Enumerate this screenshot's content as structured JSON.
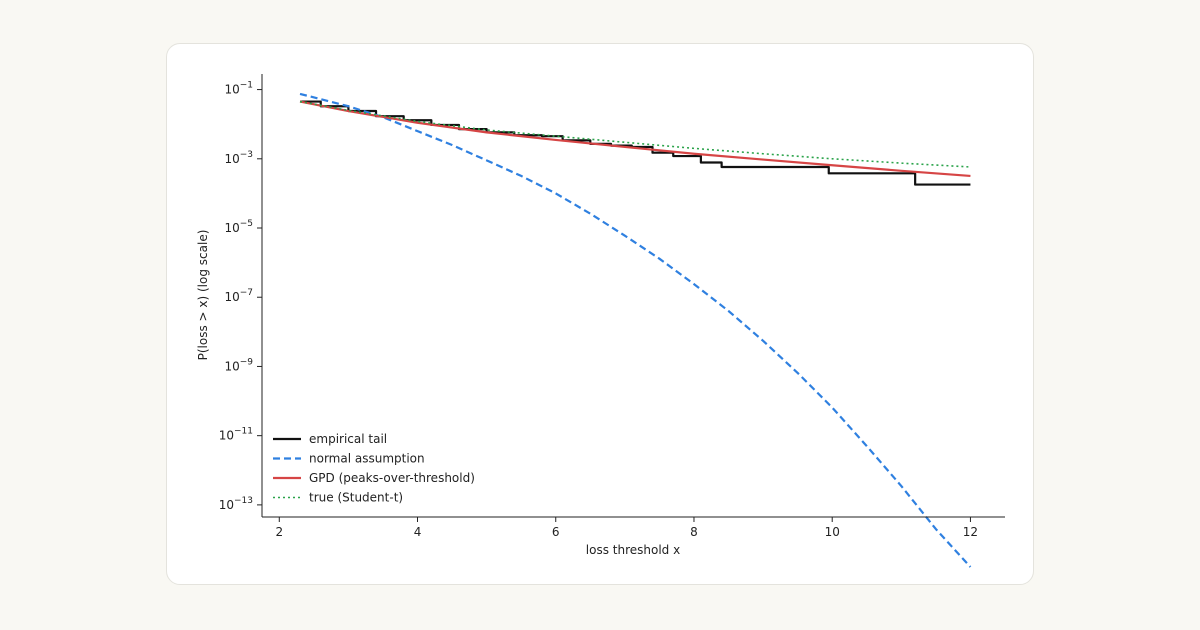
{
  "chart_data": {
    "type": "line",
    "title": "",
    "xlabel": "loss threshold x",
    "ylabel": "P(loss > x)  (log scale)",
    "xlim": [
      1.75,
      12.5
    ],
    "ylim_log10": [
      -13.35,
      -0.55
    ],
    "yscale": "log",
    "grid": false,
    "legend_placement": "lower-left",
    "x_ticks": [
      2,
      4,
      6,
      8,
      10,
      12
    ],
    "y_ticks": [
      {
        "exp": -1,
        "base": "10",
        "sup": "−1"
      },
      {
        "exp": -3,
        "base": "10",
        "sup": "−3"
      },
      {
        "exp": -5,
        "base": "10",
        "sup": "−5"
      },
      {
        "exp": -7,
        "base": "10",
        "sup": "−7"
      },
      {
        "exp": -9,
        "base": "10",
        "sup": "−9"
      },
      {
        "exp": -11,
        "base": "10",
        "sup": "−11"
      },
      {
        "exp": -13,
        "base": "10",
        "sup": "−13"
      }
    ],
    "series": [
      {
        "name": "empirical tail",
        "color": "#111111",
        "style": "solid",
        "step": true,
        "points": [
          [
            2.3,
            0.045
          ],
          [
            2.6,
            0.033
          ],
          [
            3.0,
            0.024
          ],
          [
            3.4,
            0.017
          ],
          [
            3.8,
            0.013
          ],
          [
            4.2,
            0.0095
          ],
          [
            4.6,
            0.0072
          ],
          [
            5.0,
            0.0058
          ],
          [
            5.4,
            0.0048
          ],
          [
            5.8,
            0.0045
          ],
          [
            6.1,
            0.0034
          ],
          [
            6.5,
            0.0027
          ],
          [
            6.8,
            0.0024
          ],
          [
            7.1,
            0.0022
          ],
          [
            7.4,
            0.0015
          ],
          [
            7.7,
            0.0012
          ],
          [
            8.1,
            0.00078
          ],
          [
            8.4,
            0.00058
          ],
          [
            9.3,
            0.00058
          ],
          [
            9.95,
            0.00038
          ],
          [
            11.2,
            0.00018
          ],
          [
            12.0,
            0.00018
          ]
        ]
      },
      {
        "name": "normal assumption",
        "color": "#2f80e0",
        "style": "dashed",
        "points": [
          [
            2.3,
            0.075
          ],
          [
            3.0,
            0.033
          ],
          [
            3.5,
            0.016
          ],
          [
            4.0,
            0.0063
          ],
          [
            4.5,
            0.0025
          ],
          [
            5.0,
            0.0009
          ],
          [
            5.5,
            0.00032
          ],
          [
            6.0,
            0.0001
          ],
          [
            6.5,
            2.6e-05
          ],
          [
            7.0,
            6e-06
          ],
          [
            7.5,
            1.3e-06
          ],
          [
            8.0,
            2.4e-07
          ],
          [
            8.5,
            4e-08
          ],
          [
            9.0,
            5.5e-09
          ],
          [
            9.5,
            6.5e-10
          ],
          [
            10.0,
            6.5e-11
          ],
          [
            10.5,
            5e-12
          ],
          [
            11.0,
            3.5e-13
          ],
          [
            11.5,
            2e-14
          ],
          [
            12.0,
            1.6e-15
          ]
        ]
      },
      {
        "name": "GPD (peaks-over-threshold)",
        "color": "#d64545",
        "style": "solid",
        "points": [
          [
            2.3,
            0.045
          ],
          [
            3.0,
            0.024
          ],
          [
            4.0,
            0.011
          ],
          [
            5.0,
            0.0058
          ],
          [
            6.0,
            0.0035
          ],
          [
            7.0,
            0.0022
          ],
          [
            8.0,
            0.0014
          ],
          [
            9.0,
            0.00095
          ],
          [
            10.0,
            0.00065
          ],
          [
            11.0,
            0.00045
          ],
          [
            12.0,
            0.00032
          ]
        ]
      },
      {
        "name": "true (Student-t)",
        "color": "#2aa34a",
        "style": "dotted",
        "points": [
          [
            2.3,
            0.045
          ],
          [
            3.0,
            0.025
          ],
          [
            4.0,
            0.012
          ],
          [
            5.0,
            0.0068
          ],
          [
            6.0,
            0.0045
          ],
          [
            7.0,
            0.003
          ],
          [
            8.0,
            0.002
          ],
          [
            9.0,
            0.0014
          ],
          [
            10.0,
            0.001
          ],
          [
            11.0,
            0.00075
          ],
          [
            12.0,
            0.00058
          ]
        ]
      }
    ]
  }
}
